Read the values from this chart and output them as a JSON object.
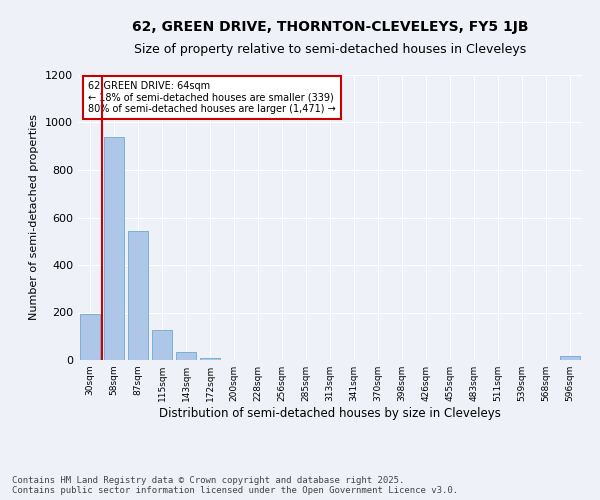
{
  "title_line1": "62, GREEN DRIVE, THORNTON-CLEVELEYS, FY5 1JB",
  "title_line2": "Size of property relative to semi-detached houses in Cleveleys",
  "xlabel": "Distribution of semi-detached houses by size in Cleveleys",
  "ylabel": "Number of semi-detached properties",
  "categories": [
    "30sqm",
    "58sqm",
    "87sqm",
    "115sqm",
    "143sqm",
    "172sqm",
    "200sqm",
    "228sqm",
    "256sqm",
    "285sqm",
    "313sqm",
    "341sqm",
    "370sqm",
    "398sqm",
    "426sqm",
    "455sqm",
    "483sqm",
    "511sqm",
    "539sqm",
    "568sqm",
    "596sqm"
  ],
  "values": [
    193,
    940,
    545,
    125,
    35,
    10,
    0,
    0,
    0,
    0,
    0,
    0,
    0,
    0,
    0,
    0,
    0,
    0,
    0,
    0,
    15
  ],
  "bar_color": "#aec6e8",
  "bar_edge_color": "#7aafd4",
  "vline_x": 0.5,
  "vline_color": "#cc0000",
  "annotation_title": "62 GREEN DRIVE: 64sqm",
  "annotation_line2": "← 18% of semi-detached houses are smaller (339)",
  "annotation_line3": "80% of semi-detached houses are larger (1,471) →",
  "annotation_box_color": "#cc0000",
  "annotation_bg": "#ffffff",
  "ylim": [
    0,
    1200
  ],
  "yticks": [
    0,
    200,
    400,
    600,
    800,
    1000,
    1200
  ],
  "footer_line1": "Contains HM Land Registry data © Crown copyright and database right 2025.",
  "footer_line2": "Contains public sector information licensed under the Open Government Licence v3.0.",
  "bg_color": "#eef2f8",
  "plot_bg_color": "#eef2f8",
  "title_fontsize": 10,
  "subtitle_fontsize": 9,
  "footer_fontsize": 6.5,
  "ylabel_fontsize": 8,
  "xlabel_fontsize": 8.5
}
